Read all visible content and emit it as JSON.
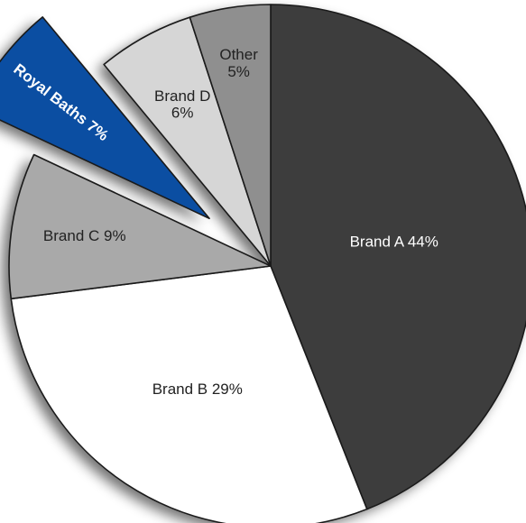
{
  "chart_data": {
    "type": "pie",
    "title": "",
    "exploded_slice": "Royal Baths",
    "slices": [
      {
        "name": "Brand A",
        "value": 44,
        "label": "Brand A 44%",
        "color": "#3d3d3d",
        "text_color": "#ffffff"
      },
      {
        "name": "Brand B",
        "value": 29,
        "label": "Brand B 29%",
        "color": "#ffffff",
        "text_color": "#222222"
      },
      {
        "name": "Brand C",
        "value": 9,
        "label": "Brand C 9%",
        "color": "#a9a9a9",
        "text_color": "#222222"
      },
      {
        "name": "Royal Baths",
        "value": 7,
        "label": "Royal Baths 7%",
        "color": "#0b4ea2",
        "text_color": "#ffffff"
      },
      {
        "name": "Brand D",
        "value": 6,
        "label_lines": [
          "Brand D",
          "6%"
        ],
        "color": "#d6d6d6",
        "text_color": "#222222"
      },
      {
        "name": "Other",
        "value": 5,
        "label_lines": [
          "Other",
          "5%"
        ],
        "color": "#8f8f8f",
        "text_color": "#222222"
      }
    ]
  }
}
